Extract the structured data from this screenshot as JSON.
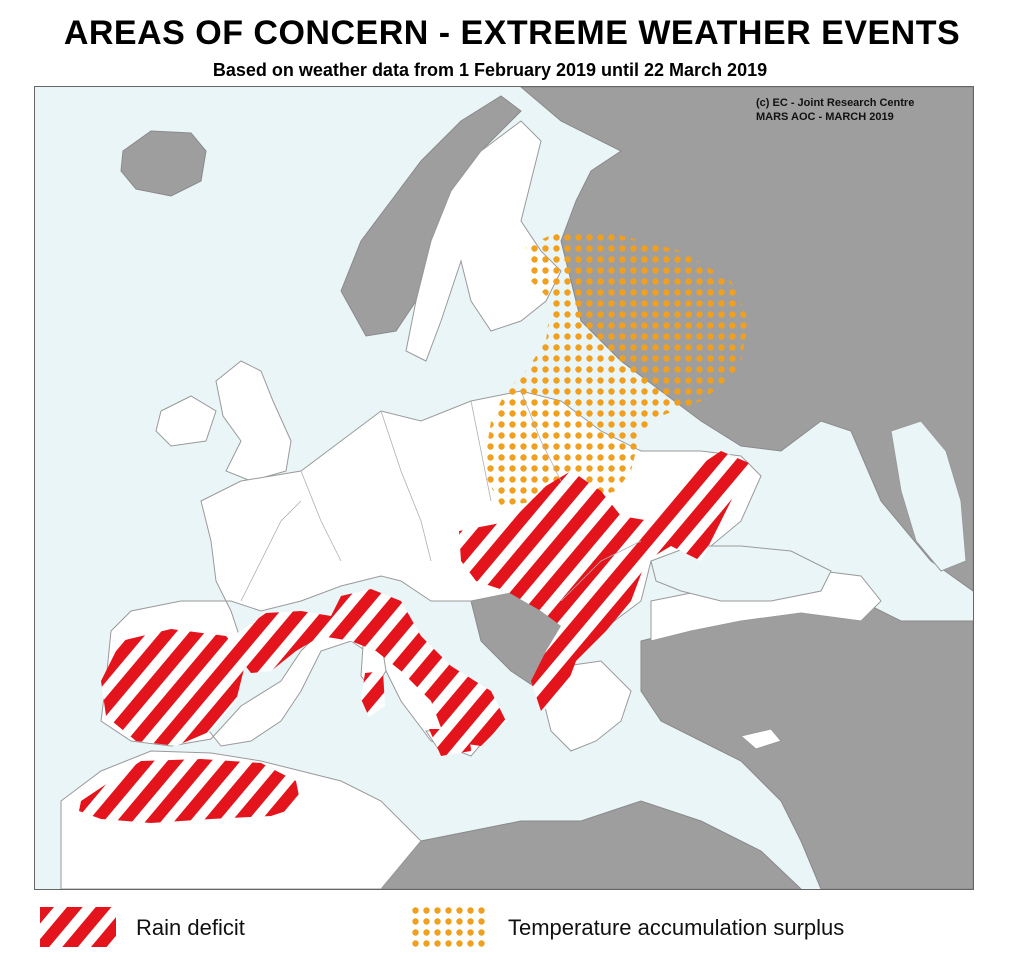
{
  "title": "AREAS OF CONCERN - EXTREME WEATHER EVENTS",
  "subtitle": "Based on weather data from 1 February 2019 until 22 March 2019",
  "credit": {
    "line1": "(c) EC - Joint Research Centre",
    "line2": "MARS AOC - MARCH 2019"
  },
  "legend": {
    "rain_deficit": "Rain deficit",
    "temperature_surplus": "Temperature accumulation surplus"
  },
  "colors": {
    "sea": "#eaf5f7",
    "land_eu": "#ffffff",
    "land_non_eu": "#9e9e9e",
    "rain_deficit": "#e3141c",
    "temperature_surplus": "#f0a01e"
  },
  "icons": {
    "eu_flag": "eu-flag-icon"
  }
}
